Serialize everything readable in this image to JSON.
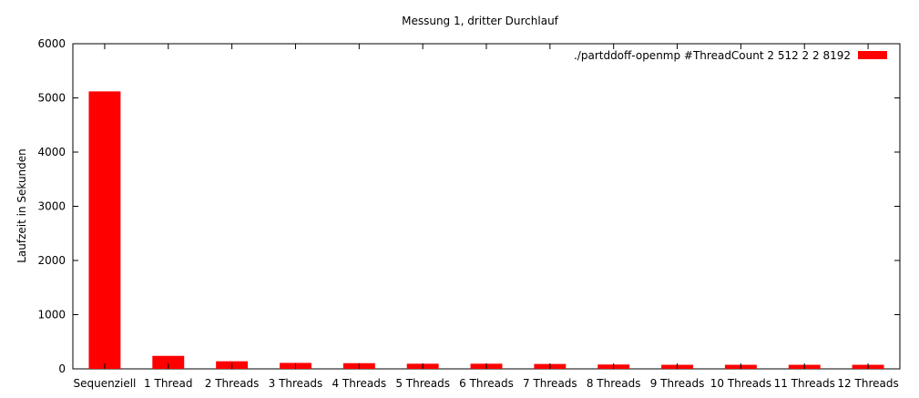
{
  "chart_data": {
    "type": "bar",
    "title": "Messung 1, dritter Durchlauf",
    "xlabel": "",
    "ylabel": "Laufzeit in Sekunden",
    "ylim": [
      0,
      6000
    ],
    "yticks": [
      0,
      1000,
      2000,
      3000,
      4000,
      5000,
      6000
    ],
    "grid": false,
    "legend_position": "top-right",
    "categories": [
      "Sequenziell",
      "1 Thread",
      "2 Threads",
      "3 Threads",
      "4 Threads",
      "5 Threads",
      "6 Threads",
      "7 Threads",
      "8 Threads",
      "9 Threads",
      "10 Threads",
      "11 Threads",
      "12 Threads"
    ],
    "series": [
      {
        "name": "./partddoff-openmp #ThreadCount 2 512 2 2 8192",
        "color": "#ff0000",
        "values": [
          5120,
          240,
          140,
          110,
          105,
          95,
          95,
          90,
          80,
          75,
          75,
          75,
          75
        ]
      }
    ]
  }
}
